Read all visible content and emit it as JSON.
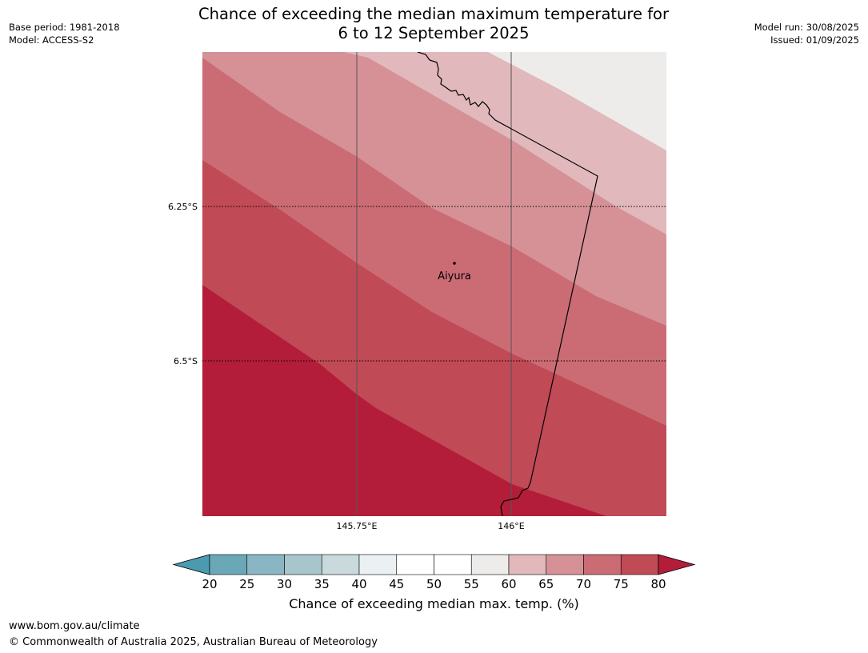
{
  "header": {
    "title_line1": "Chance of exceeding the median maximum temperature for",
    "title_line2": "6 to 12 September 2025",
    "base_period": "Base period: 1981-2018",
    "model": "Model: ACCESS-S2",
    "model_run": "Model run: 30/08/2025",
    "issued": "Issued: 01/09/2025"
  },
  "map": {
    "latitude_labels": [
      "6.25°S",
      "6.5°S"
    ],
    "longitude_labels": [
      "145.75°E",
      "146°E"
    ],
    "place_label": "Aiyura",
    "colors": {
      "band_80_plus": "#b31d3a",
      "band_75_80": "#c04a56",
      "band_70_75": "#cb6c75",
      "band_65_70": "#d69197",
      "band_60_65": "#e1b8bc",
      "band_55_60": "#eeeceb"
    }
  },
  "colorbar": {
    "ticks": [
      "20",
      "25",
      "30",
      "35",
      "40",
      "45",
      "50",
      "55",
      "60",
      "65",
      "70",
      "75",
      "80"
    ],
    "colors": [
      "#6aa8b8",
      "#8ab6c3",
      "#a8c5cc",
      "#c9d9dc",
      "#ebf0f2",
      "#ffffff",
      "#ffffff",
      "#eeeceb",
      "#e1b8bc",
      "#d69197",
      "#cb6c75",
      "#c04a56"
    ],
    "low_extend_color": "#4b9bb0",
    "high_extend_color": "#b31d3a",
    "label": "Chance of exceeding median max. temp. (%)"
  },
  "footer": {
    "url": "www.bom.gov.au/climate",
    "copyright": "© Commonwealth of Australia 2025, Australian Bureau of Meteorology"
  }
}
